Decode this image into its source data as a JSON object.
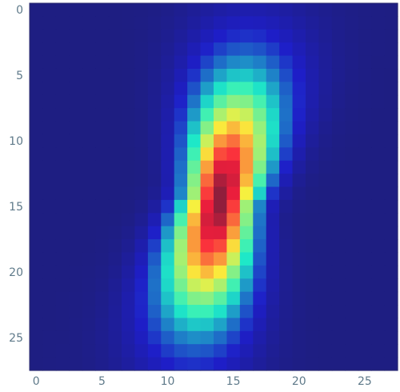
{
  "chart_data": {
    "type": "heatmap",
    "title": "",
    "xlabel": "",
    "ylabel": "",
    "xlim": [
      -0.5,
      27.5
    ],
    "ylim": [
      27.5,
      -0.5
    ],
    "x_ticks": [
      0,
      5,
      10,
      15,
      20,
      25
    ],
    "y_ticks": [
      0,
      5,
      10,
      15,
      20,
      25
    ],
    "x_tick_labels": [
      "0",
      "5",
      "10",
      "15",
      "20",
      "25"
    ],
    "y_tick_labels": [
      "0",
      "5",
      "10",
      "15",
      "20",
      "25"
    ],
    "grid": false,
    "colormap": "jet",
    "value_range": [
      0,
      1
    ],
    "shape": [
      28,
      28
    ],
    "description_of_field": "elongated blob tilted from upper-right to lower-left, peak near column 14, row 14",
    "blob": {
      "center": [
        14,
        14.5
      ],
      "upper_end": [
        15.5,
        6
      ],
      "lower_end": [
        12,
        22
      ],
      "peak_value": 1.0
    },
    "background_color": "#3a3a9c"
  }
}
